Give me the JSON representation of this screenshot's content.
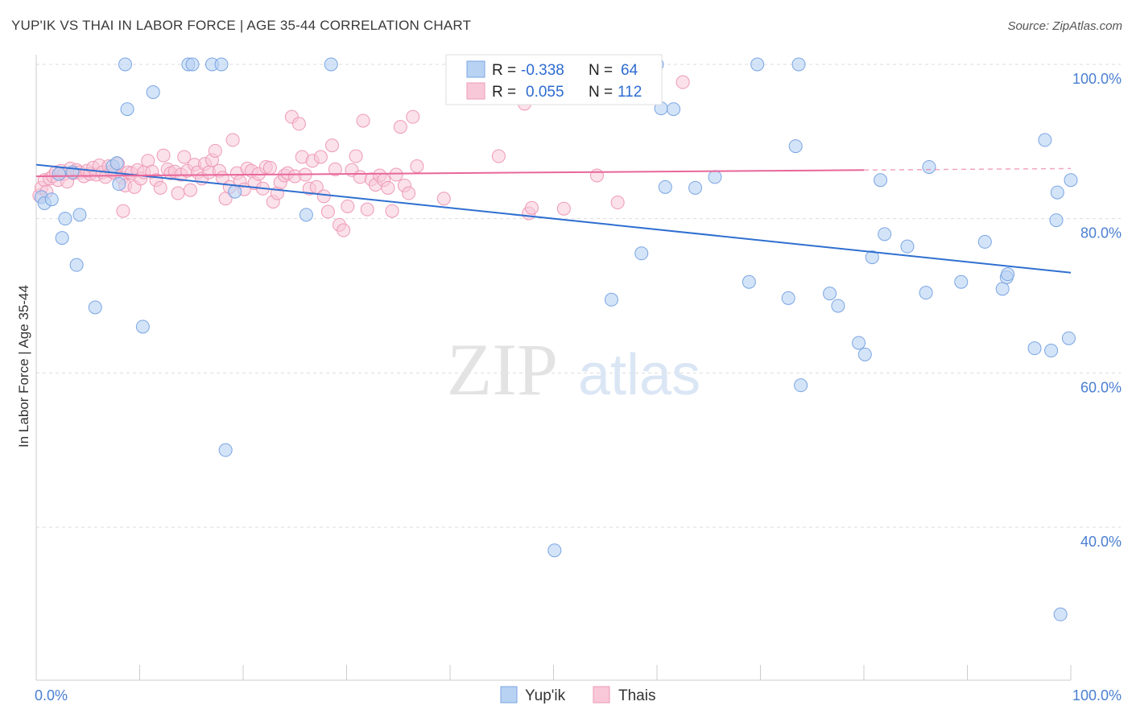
{
  "header": {
    "title": "YUP'IK VS THAI IN LABOR FORCE | AGE 35-44 CORRELATION CHART",
    "source": "Source: ZipAtlas.com"
  },
  "watermark": {
    "zip": "ZIP",
    "atlas": "atlas"
  },
  "legend": {
    "r_label": "R =",
    "n_label": "N =",
    "rows": [
      {
        "r": "-0.338",
        "n": "64"
      },
      {
        "r": "0.055",
        "n": "112"
      }
    ]
  },
  "colors": {
    "blue_fill": "#b8d2f3",
    "blue_stroke": "#7aa5e3",
    "blue_line": "#2f6fd0",
    "pink_fill": "#f8c8d8",
    "pink_stroke": "#ee9ab6",
    "pink_line": "#e8679a",
    "grid": "#dddddd",
    "tick_text": "#4a7fd1"
  },
  "chart_data": {
    "type": "scatter",
    "xlabel": "",
    "ylabel": "In Labor Force | Age 35-44",
    "xlim": [
      0,
      100
    ],
    "ylim": [
      20,
      102
    ],
    "x_tick_labels": [
      {
        "value": 0,
        "label": "0.0%"
      },
      {
        "value": 100,
        "label": "100.0%"
      }
    ],
    "y_tick_labels": [
      {
        "value": 100,
        "label": "100.0%"
      },
      {
        "value": 80,
        "label": "80.0%"
      },
      {
        "value": 60,
        "label": "60.0%"
      },
      {
        "value": 40,
        "label": "40.0%"
      }
    ],
    "grid": true,
    "legend_position": "top-center",
    "series": [
      {
        "name": "Yup'ik",
        "color": "#7aa5e3",
        "trend": {
          "x": [
            0,
            100
          ],
          "y": [
            87.0,
            73.0
          ]
        },
        "points": [
          [
            0.5,
            82.8
          ],
          [
            0.8,
            82.0
          ],
          [
            1.5,
            82.5
          ],
          [
            2.2,
            85.8
          ],
          [
            2.5,
            77.5
          ],
          [
            2.8,
            80.0
          ],
          [
            3.5,
            86.0
          ],
          [
            3.9,
            74.0
          ],
          [
            4.2,
            80.5
          ],
          [
            5.7,
            68.5
          ],
          [
            7.4,
            86.8
          ],
          [
            7.8,
            87.2
          ],
          [
            8.0,
            84.5
          ],
          [
            8.6,
            100.0
          ],
          [
            8.8,
            94.2
          ],
          [
            10.3,
            66.0
          ],
          [
            11.3,
            96.4
          ],
          [
            14.7,
            100.0
          ],
          [
            15.1,
            100.0
          ],
          [
            17.0,
            100.0
          ],
          [
            17.9,
            100.0
          ],
          [
            18.3,
            50.0
          ],
          [
            19.2,
            83.5
          ],
          [
            26.1,
            80.5
          ],
          [
            28.5,
            100.0
          ],
          [
            40.9,
            100.0
          ],
          [
            50.1,
            37.0
          ],
          [
            55.6,
            69.5
          ],
          [
            58.5,
            75.5
          ],
          [
            60.0,
            100.0
          ],
          [
            60.4,
            94.3
          ],
          [
            60.8,
            84.1
          ],
          [
            61.6,
            94.2
          ],
          [
            63.7,
            84.0
          ],
          [
            65.6,
            85.4
          ],
          [
            68.9,
            71.8
          ],
          [
            69.7,
            100.0
          ],
          [
            72.7,
            69.7
          ],
          [
            73.4,
            89.4
          ],
          [
            73.7,
            100.0
          ],
          [
            73.9,
            58.4
          ],
          [
            76.7,
            70.3
          ],
          [
            77.5,
            68.7
          ],
          [
            79.5,
            63.9
          ],
          [
            80.1,
            62.4
          ],
          [
            80.8,
            75.0
          ],
          [
            81.6,
            85.0
          ],
          [
            84.2,
            76.4
          ],
          [
            86.0,
            70.4
          ],
          [
            86.3,
            86.7
          ],
          [
            89.4,
            71.8
          ],
          [
            91.7,
            77.0
          ],
          [
            93.4,
            70.9
          ],
          [
            93.8,
            72.4
          ],
          [
            93.9,
            72.8
          ],
          [
            96.5,
            63.2
          ],
          [
            97.5,
            90.2
          ],
          [
            98.6,
            79.8
          ],
          [
            98.7,
            83.4
          ],
          [
            98.1,
            62.9
          ],
          [
            99.8,
            64.5
          ],
          [
            100.0,
            85.0
          ],
          [
            99.0,
            28.7
          ],
          [
            82.0,
            78.0
          ]
        ]
      },
      {
        "name": "Thais",
        "color": "#ee9ab6",
        "trend": {
          "x": [
            0,
            80
          ],
          "y": [
            85.5,
            86.3
          ]
        },
        "trend_dashed": {
          "x": [
            80,
            100
          ],
          "y": [
            86.3,
            86.5
          ]
        },
        "points": [
          [
            0.3,
            83.0
          ],
          [
            0.5,
            84.0
          ],
          [
            0.8,
            85.0
          ],
          [
            1.0,
            83.5
          ],
          [
            1.3,
            85.2
          ],
          [
            1.6,
            85.5
          ],
          [
            1.9,
            86.0
          ],
          [
            2.1,
            85.0
          ],
          [
            2.4,
            86.2
          ],
          [
            2.7,
            85.8
          ],
          [
            3.0,
            84.8
          ],
          [
            3.3,
            86.5
          ],
          [
            3.6,
            85.9
          ],
          [
            3.9,
            86.3
          ],
          [
            4.2,
            86.0
          ],
          [
            4.6,
            85.5
          ],
          [
            4.9,
            86.2
          ],
          [
            5.2,
            85.8
          ],
          [
            5.5,
            86.6
          ],
          [
            5.8,
            85.7
          ],
          [
            6.1,
            86.9
          ],
          [
            6.4,
            86.0
          ],
          [
            6.7,
            85.4
          ],
          [
            7.0,
            86.8
          ],
          [
            7.3,
            86.1
          ],
          [
            7.6,
            85.9
          ],
          [
            7.9,
            87.1
          ],
          [
            8.3,
            85.3
          ],
          [
            8.6,
            84.3
          ],
          [
            8.9,
            86.0
          ],
          [
            9.2,
            85.9
          ],
          [
            9.5,
            84.1
          ],
          [
            9.8,
            86.3
          ],
          [
            10.1,
            85.2
          ],
          [
            10.4,
            86.0
          ],
          [
            10.8,
            87.5
          ],
          [
            11.2,
            86.1
          ],
          [
            11.6,
            85.0
          ],
          [
            12.0,
            84.0
          ],
          [
            12.3,
            88.2
          ],
          [
            12.7,
            86.4
          ],
          [
            13.0,
            85.9
          ],
          [
            13.4,
            86.1
          ],
          [
            13.7,
            83.3
          ],
          [
            14.0,
            85.7
          ],
          [
            14.3,
            88.0
          ],
          [
            14.6,
            86.2
          ],
          [
            14.9,
            83.7
          ],
          [
            15.3,
            87.0
          ],
          [
            15.6,
            86.0
          ],
          [
            16.0,
            85.2
          ],
          [
            16.3,
            87.1
          ],
          [
            16.7,
            86.0
          ],
          [
            17.0,
            87.6
          ],
          [
            17.3,
            88.8
          ],
          [
            17.7,
            86.2
          ],
          [
            18.0,
            85.3
          ],
          [
            18.3,
            82.6
          ],
          [
            18.7,
            84.1
          ],
          [
            19.0,
            90.2
          ],
          [
            19.4,
            85.9
          ],
          [
            19.7,
            84.8
          ],
          [
            20.1,
            83.8
          ],
          [
            20.4,
            86.5
          ],
          [
            20.8,
            86.2
          ],
          [
            21.1,
            84.6
          ],
          [
            21.5,
            85.8
          ],
          [
            21.9,
            83.9
          ],
          [
            22.2,
            86.7
          ],
          [
            22.6,
            86.6
          ],
          [
            22.9,
            82.2
          ],
          [
            23.3,
            83.3
          ],
          [
            23.6,
            84.7
          ],
          [
            24.0,
            85.6
          ],
          [
            24.3,
            85.9
          ],
          [
            24.7,
            93.2
          ],
          [
            25.0,
            85.5
          ],
          [
            25.4,
            92.3
          ],
          [
            25.7,
            88.0
          ],
          [
            26.0,
            85.7
          ],
          [
            26.4,
            83.9
          ],
          [
            26.7,
            87.5
          ],
          [
            27.1,
            84.1
          ],
          [
            27.5,
            88.0
          ],
          [
            27.8,
            82.9
          ],
          [
            28.2,
            80.9
          ],
          [
            28.6,
            89.5
          ],
          [
            28.9,
            86.4
          ],
          [
            29.3,
            79.2
          ],
          [
            29.7,
            78.5
          ],
          [
            30.1,
            81.6
          ],
          [
            30.5,
            86.3
          ],
          [
            30.9,
            88.1
          ],
          [
            31.3,
            85.4
          ],
          [
            31.6,
            92.7
          ],
          [
            32.0,
            81.2
          ],
          [
            32.4,
            85.1
          ],
          [
            32.8,
            84.4
          ],
          [
            33.2,
            85.6
          ],
          [
            33.6,
            85.0
          ],
          [
            34.0,
            84.0
          ],
          [
            34.4,
            81.0
          ],
          [
            34.8,
            85.7
          ],
          [
            35.2,
            91.9
          ],
          [
            35.6,
            84.3
          ],
          [
            36.0,
            83.3
          ],
          [
            36.4,
            93.2
          ],
          [
            36.8,
            86.8
          ],
          [
            39.4,
            82.6
          ],
          [
            44.7,
            88.1
          ],
          [
            47.2,
            94.9
          ],
          [
            47.6,
            80.7
          ],
          [
            47.9,
            81.4
          ],
          [
            51.0,
            81.3
          ],
          [
            54.2,
            85.6
          ],
          [
            56.2,
            82.1
          ],
          [
            62.5,
            97.7
          ],
          [
            8.4,
            81.0
          ]
        ]
      }
    ]
  },
  "bottom_legend": [
    {
      "label": "Yup'ik"
    },
    {
      "label": "Thais"
    }
  ]
}
